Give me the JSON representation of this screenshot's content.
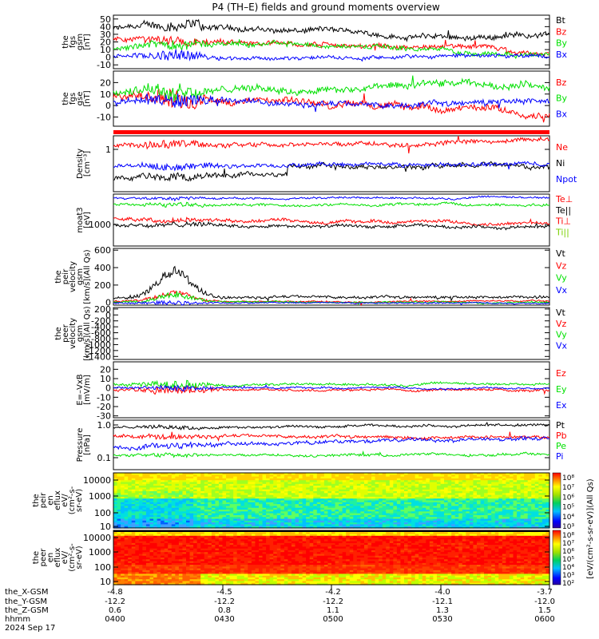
{
  "title": "P4 (TH–E) fields and ground moments overview",
  "colors": {
    "black": "#000000",
    "red": "#ff0000",
    "green": "#00e000",
    "blue": "#0000ff",
    "light_green": "#7ad000"
  },
  "chart_data": [
    {
      "type": "line",
      "name": "fgs-gsm",
      "ylabel_lines": [
        "the",
        "fgs",
        "gsm",
        "[nT]"
      ],
      "ylim": [
        -15,
        55
      ],
      "yticks": [
        "50",
        "40",
        "30",
        "20",
        "10",
        "0",
        "-10"
      ],
      "ytick_values": [
        50,
        40,
        30,
        20,
        10,
        0,
        -10
      ],
      "legend": [
        {
          "label": "Bt",
          "color": "#000000"
        },
        {
          "label": "Bz",
          "color": "#ff0000"
        },
        {
          "label": "By",
          "color": "#00e000"
        },
        {
          "label": "Bx",
          "color": "#0000ff"
        }
      ]
    },
    {
      "type": "line",
      "name": "fgs-gse",
      "ylabel_lines": [
        "the",
        "fgs",
        "gse",
        "[nT]"
      ],
      "ylim": [
        -18,
        30
      ],
      "yticks": [
        "20",
        "10",
        "0",
        "-10"
      ],
      "ytick_values": [
        20,
        10,
        0,
        -10
      ],
      "legend": [
        {
          "label": "Bz",
          "color": "#ff0000"
        },
        {
          "label": "By",
          "color": "#00e000"
        },
        {
          "label": "Bx",
          "color": "#0000ff"
        }
      ]
    },
    {
      "type": "line",
      "name": "density",
      "scale": "log",
      "ylabel_lines": [
        "Density",
        "[cm⁻³]"
      ],
      "yticks": [
        "1"
      ],
      "legend": [
        {
          "label": "Ne",
          "color": "#ff0000"
        },
        {
          "label": "Ni",
          "color": "#000000"
        },
        {
          "label": "Npot",
          "color": "#0000ff"
        }
      ]
    },
    {
      "type": "line",
      "name": "temperature",
      "scale": "log",
      "ylabel_lines": [
        "moat3",
        "[eV]"
      ],
      "yticks": [
        "1000"
      ],
      "legend": [
        {
          "label": "Te⊥",
          "color": "#ff0000"
        },
        {
          "label": "Te||",
          "color": "#000000"
        },
        {
          "label": "Ti⊥",
          "color": "#ff0000"
        },
        {
          "label": "Ti||",
          "color": "#7ad000"
        }
      ]
    },
    {
      "type": "line",
      "name": "peir-velocity",
      "ylabel_lines": [
        "the",
        "peir",
        "velocity",
        "gsm",
        "[km/s](All Qs)"
      ],
      "ylim": [
        -30,
        620
      ],
      "yticks": [
        "600",
        "400",
        "200",
        "0"
      ],
      "ytick_values": [
        600,
        400,
        200,
        0
      ],
      "legend": [
        {
          "label": "Vt",
          "color": "#000000"
        },
        {
          "label": "Vz",
          "color": "#ff0000"
        },
        {
          "label": "Vy",
          "color": "#00e000"
        },
        {
          "label": "Vx",
          "color": "#0000ff"
        }
      ]
    },
    {
      "type": "line",
      "name": "peer-velocity",
      "ylabel_lines": [
        "the",
        "peer",
        "velocity",
        "gsm",
        "[km/s](All Qs)"
      ],
      "ylim": [
        -1500,
        250
      ],
      "yticks": [
        "200",
        "0",
        "-200",
        "-400",
        "-600",
        "-800",
        "-1000",
        "-1200",
        "-1400"
      ],
      "ytick_values": [
        200,
        0,
        -200,
        -400,
        -600,
        -800,
        -1000,
        -1200,
        -1400
      ],
      "legend": [
        {
          "label": "Vt",
          "color": "#000000"
        },
        {
          "label": "Vz",
          "color": "#ff0000"
        },
        {
          "label": "Vy",
          "color": "#00e000"
        },
        {
          "label": "Vx",
          "color": "#0000ff"
        }
      ]
    },
    {
      "type": "line",
      "name": "efield",
      "ylabel_lines": [
        "E=–VxB",
        "[mV/m]"
      ],
      "ylim": [
        -32,
        28
      ],
      "yticks": [
        "20",
        "10",
        "0",
        "-10",
        "-20",
        "-30"
      ],
      "ytick_values": [
        20,
        10,
        0,
        -10,
        -20,
        -30
      ],
      "legend": [
        {
          "label": "Ez",
          "color": "#ff0000"
        },
        {
          "label": "Ey",
          "color": "#00e000"
        },
        {
          "label": "Ex",
          "color": "#0000ff"
        }
      ]
    },
    {
      "type": "line",
      "name": "pressure",
      "scale": "log",
      "ylabel_lines": [
        "Pressure",
        "[nPa]"
      ],
      "yticks": [
        "1.0",
        "0.1"
      ],
      "legend": [
        {
          "label": "Pt",
          "color": "#000000"
        },
        {
          "label": "Pb",
          "color": "#ff0000"
        },
        {
          "label": "Pe",
          "color": "#00e000"
        },
        {
          "label": "Pi",
          "color": "#0000ff"
        }
      ]
    },
    {
      "type": "heatmap",
      "name": "peir-en-eflux",
      "ylabel_lines": [
        "the",
        "peir",
        "en",
        "eflux",
        "eV/",
        "(cm²-s-",
        "sr-eV)"
      ],
      "yticks": [
        "10000",
        "1000",
        "100",
        "10"
      ]
    },
    {
      "type": "heatmap",
      "name": "peer-en-eflux",
      "ylabel_lines": [
        "the",
        "peer",
        "en",
        "eflux",
        "eV/",
        "(cm²-s-",
        "sr-eV)"
      ],
      "yticks": [
        "10000",
        "1000",
        "100",
        "10"
      ]
    }
  ],
  "colorbar": {
    "label": "[eV/(cm²-s-sr-eV)](All Qs)",
    "top_ticks": [
      "10⁸",
      "10⁷",
      "10⁶",
      "10⁵",
      "10⁴",
      "10³"
    ],
    "bottom_ticks": [
      "10⁸",
      "10⁷",
      "10⁶",
      "10⁵",
      "10⁴",
      "10³",
      "10²"
    ]
  },
  "x_axis": {
    "row_labels": [
      "the_X-GSM",
      "the_Y-GSM",
      "the_Z-GSM",
      "hhmm",
      "2024 Sep 17"
    ],
    "ticks": [
      {
        "x": "-4.8",
        "y": "-12.2",
        "z": "0.6",
        "hhmm": "0400"
      },
      {
        "x": "-4.5",
        "y": "-12.2",
        "z": "0.8",
        "hhmm": "0430"
      },
      {
        "x": "-4.2",
        "y": "-12.2",
        "z": "1.1",
        "hhmm": "0500"
      },
      {
        "x": "-4.0",
        "y": "-12.1",
        "z": "1.3",
        "hhmm": "0530"
      },
      {
        "x": "-3.7",
        "y": "-12.0",
        "z": "1.5",
        "hhmm": "0600"
      }
    ]
  }
}
